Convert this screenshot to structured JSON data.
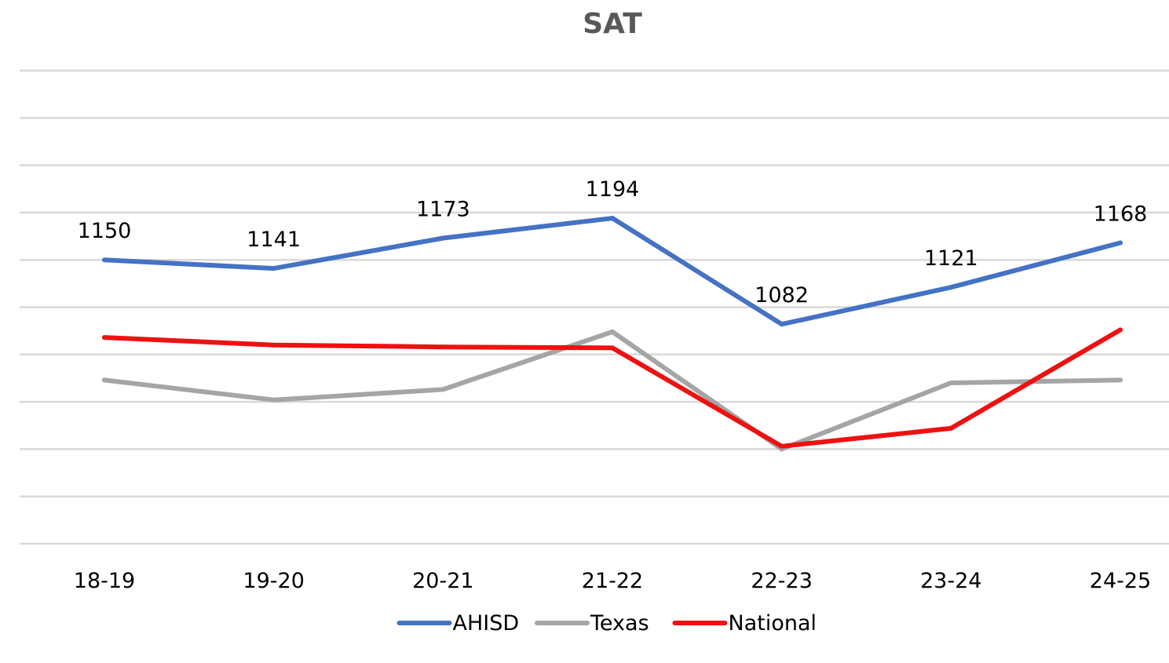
{
  "chart_data": {
    "type": "line",
    "title": "SAT",
    "xlabel": "",
    "ylabel": "",
    "categories": [
      "18-19",
      "19-20",
      "20-21",
      "21-22",
      "22-23",
      "23-24",
      "24-25"
    ],
    "series": [
      {
        "name": "AHISD",
        "color": "#4472c4",
        "values": [
          1150,
          1141,
          1173,
          1194,
          1082,
          1121,
          1168
        ],
        "show_labels": true
      },
      {
        "name": "Texas",
        "color": "#a5a5a5",
        "values": [
          1023,
          1002,
          1013,
          1074,
          950,
          1020,
          1023
        ],
        "show_labels": false
      },
      {
        "name": "National",
        "color": "#ee1111",
        "values": [
          1068,
          1060,
          1058,
          1057,
          953,
          972,
          1076
        ],
        "show_labels": false
      }
    ],
    "ylim": [
      850,
      1350
    ],
    "y_gridlines": 11,
    "grid": true,
    "y_tick_labels_shown": false,
    "legend": "bottom-center"
  }
}
